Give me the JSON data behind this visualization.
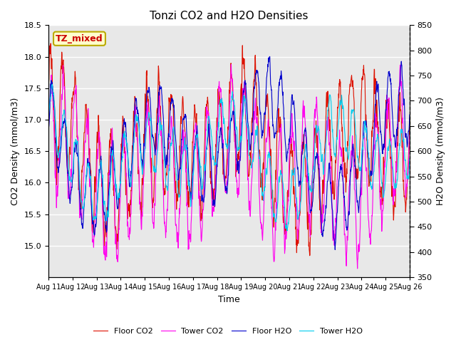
{
  "title": "Tonzi CO2 and H2O Densities",
  "xlabel": "Time",
  "ylabel_left": "CO2 Density (mmol/m3)",
  "ylabel_right": "H2O Density (mmol/m3)",
  "ylim_left": [
    14.5,
    18.5
  ],
  "ylim_right": [
    350,
    850
  ],
  "yticks_left": [
    15.0,
    15.5,
    16.0,
    16.5,
    17.0,
    17.5,
    18.0,
    18.5
  ],
  "yticks_right": [
    350,
    400,
    450,
    500,
    550,
    600,
    650,
    700,
    750,
    800,
    850
  ],
  "xtick_labels": [
    "Aug 11",
    "Aug 12",
    "Aug 13",
    "Aug 14",
    "Aug 15",
    "Aug 16",
    "Aug 17",
    "Aug 18",
    "Aug 19",
    "Aug 20",
    "Aug 21",
    "Aug 22",
    "Aug 23",
    "Aug 24",
    "Aug 25",
    "Aug 26"
  ],
  "annotation_text": "TZ_mixed",
  "annotation_color": "#cc0000",
  "annotation_bg": "#ffffcc",
  "annotation_border": "#bbaa00",
  "colors": {
    "floor_co2": "#dd1100",
    "tower_co2": "#ff00ee",
    "floor_h2o": "#0000cc",
    "tower_h2o": "#00ccee"
  },
  "legend_labels": [
    "Floor CO2",
    "Tower CO2",
    "Floor H2O",
    "Tower H2O"
  ],
  "bg_color": "#e8e8e8",
  "grid_color": "#ffffff",
  "n_days": 15,
  "pts_per_day": 96
}
